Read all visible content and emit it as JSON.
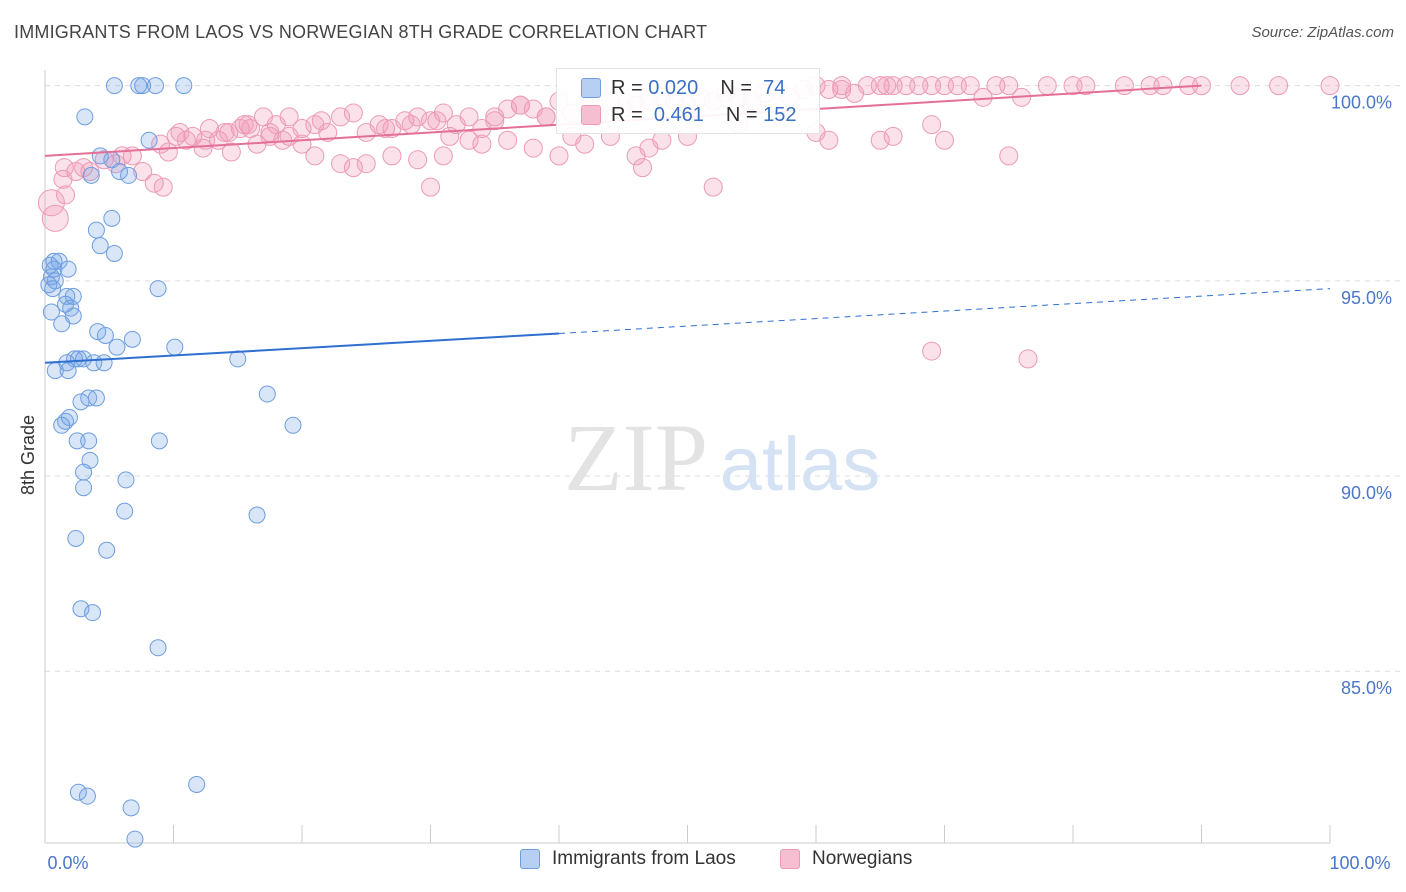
{
  "title": "IMMIGRANTS FROM LAOS VS NORWEGIAN 8TH GRADE CORRELATION CHART",
  "source": "Source: ZipAtlas.com",
  "watermark": {
    "zip": "ZIP",
    "atlas": "atlas"
  },
  "colors": {
    "laos_fill": "rgba(120,165,230,0.28)",
    "laos_stroke": "#6d9de0",
    "laos_line": "#2f6fd0",
    "nor_fill": "rgba(240,150,180,0.28)",
    "nor_stroke": "#ec9ab8",
    "nor_line": "#e46f98",
    "tick_label": "#4a77c9",
    "grid": "#dcdcdc"
  },
  "stats": {
    "laos": {
      "r_label": "R =",
      "r": "0.020",
      "n_label": "N =",
      "n": "74"
    },
    "nor": {
      "r_label": "R =",
      "r": "0.461",
      "n_label": "N =",
      "n": "152"
    }
  },
  "legend": {
    "laos": "Immigrants from Laos",
    "nor": "Norwegians"
  },
  "chart_data": {
    "type": "scatter",
    "title": "IMMIGRANTS FROM LAOS VS NORWEGIAN 8TH GRADE CORRELATION CHART",
    "xlabel": "",
    "ylabel": "8th Grade",
    "xlim": [
      0,
      100
    ],
    "ylim": [
      80.6,
      100.4
    ],
    "x_tick_labels": [
      "0.0%",
      "100.0%"
    ],
    "y_ticks": [
      {
        "value": 100,
        "label": "100.0%"
      },
      {
        "value": 95,
        "label": "95.0%"
      },
      {
        "value": 90,
        "label": "90.0%"
      },
      {
        "value": 85,
        "label": "85.0%"
      }
    ],
    "grid": true,
    "legend_position": "bottom",
    "series": [
      {
        "name": "Immigrants from Laos",
        "trend": {
          "x": [
            0,
            40
          ],
          "y": [
            92.9,
            93.65
          ],
          "dashed_to": [
            100,
            94.8
          ]
        },
        "points": [
          [
            5.4,
            100
          ],
          [
            7.3,
            100
          ],
          [
            7.6,
            100
          ],
          [
            8.6,
            100
          ],
          [
            10.8,
            100
          ],
          [
            3.1,
            99.2
          ],
          [
            8.1,
            98.6
          ],
          [
            4.3,
            98.2
          ],
          [
            5.2,
            98.1
          ],
          [
            5.8,
            97.8
          ],
          [
            3.6,
            97.7
          ],
          [
            6.5,
            97.7
          ],
          [
            5.2,
            96.6
          ],
          [
            4.0,
            96.3
          ],
          [
            4.3,
            95.9
          ],
          [
            5.4,
            95.7
          ],
          [
            0.7,
            95.5
          ],
          [
            1.1,
            95.5
          ],
          [
            0.4,
            95.4
          ],
          [
            0.7,
            95.3
          ],
          [
            1.8,
            95.3
          ],
          [
            0.5,
            95.1
          ],
          [
            0.8,
            95.0
          ],
          [
            0.3,
            94.9
          ],
          [
            8.8,
            94.8
          ],
          [
            1.7,
            94.6
          ],
          [
            2.2,
            94.6
          ],
          [
            1.6,
            94.4
          ],
          [
            2.0,
            94.3
          ],
          [
            0.5,
            94.2
          ],
          [
            2.2,
            94.1
          ],
          [
            1.3,
            93.9
          ],
          [
            4.1,
            93.7
          ],
          [
            4.7,
            93.6
          ],
          [
            6.8,
            93.5
          ],
          [
            5.6,
            93.3
          ],
          [
            10.1,
            93.3
          ],
          [
            15.0,
            93.0
          ],
          [
            2.3,
            93.0
          ],
          [
            2.6,
            93.0
          ],
          [
            3.0,
            93.0
          ],
          [
            3.8,
            92.9
          ],
          [
            4.6,
            92.9
          ],
          [
            1.7,
            92.9
          ],
          [
            0.8,
            92.7
          ],
          [
            1.8,
            92.7
          ],
          [
            17.3,
            92.1
          ],
          [
            3.4,
            92.0
          ],
          [
            4.0,
            92.0
          ],
          [
            2.8,
            91.9
          ],
          [
            1.9,
            91.5
          ],
          [
            1.6,
            91.4
          ],
          [
            1.3,
            91.3
          ],
          [
            19.3,
            91.3
          ],
          [
            2.5,
            90.9
          ],
          [
            3.4,
            90.9
          ],
          [
            8.9,
            90.9
          ],
          [
            3.5,
            90.4
          ],
          [
            3.0,
            90.1
          ],
          [
            6.3,
            89.9
          ],
          [
            3.0,
            89.7
          ],
          [
            6.2,
            89.1
          ],
          [
            16.5,
            89.0
          ],
          [
            2.4,
            88.4
          ],
          [
            4.8,
            88.1
          ],
          [
            2.8,
            86.6
          ],
          [
            3.7,
            86.5
          ],
          [
            8.8,
            85.6
          ],
          [
            11.8,
            82.1
          ],
          [
            2.6,
            81.9
          ],
          [
            3.3,
            81.8
          ],
          [
            6.7,
            81.5
          ],
          [
            7.0,
            80.7
          ],
          [
            0.6,
            94.8
          ]
        ]
      },
      {
        "name": "Norwegians",
        "trend": {
          "x": [
            0,
            90
          ],
          "y": [
            98.2,
            100.0
          ]
        },
        "points": [
          [
            0.8,
            96.6
          ],
          [
            1.6,
            97.2
          ],
          [
            1.4,
            97.6
          ],
          [
            9.2,
            97.4
          ],
          [
            2.4,
            97.8
          ],
          [
            3.5,
            97.8
          ],
          [
            7.6,
            97.8
          ],
          [
            5.5,
            98.0
          ],
          [
            4.6,
            98.1
          ],
          [
            6.0,
            98.2
          ],
          [
            8.5,
            97.5
          ],
          [
            1.5,
            97.9
          ],
          [
            0.5,
            97.0
          ],
          [
            3.0,
            97.9
          ],
          [
            6.8,
            98.2
          ],
          [
            9.6,
            98.3
          ],
          [
            12.3,
            98.4
          ],
          [
            14.3,
            98.8
          ],
          [
            10.2,
            98.7
          ],
          [
            11.0,
            98.6
          ],
          [
            12.8,
            98.9
          ],
          [
            15.2,
            98.9
          ],
          [
            16.0,
            98.9
          ],
          [
            15.5,
            99.0
          ],
          [
            18.0,
            99.0
          ],
          [
            17.0,
            99.2
          ],
          [
            19.0,
            99.2
          ],
          [
            21.0,
            99.0
          ],
          [
            23.0,
            99.2
          ],
          [
            22.0,
            98.8
          ],
          [
            20.0,
            98.9
          ],
          [
            18.5,
            98.6
          ],
          [
            17.5,
            98.8
          ],
          [
            16.5,
            98.5
          ],
          [
            14.5,
            98.3
          ],
          [
            13.5,
            98.6
          ],
          [
            11.5,
            98.7
          ],
          [
            24.0,
            99.3
          ],
          [
            25.0,
            98.8
          ],
          [
            26.0,
            99.0
          ],
          [
            27.0,
            98.9
          ],
          [
            28.0,
            99.1
          ],
          [
            29.0,
            99.2
          ],
          [
            30.0,
            99.1
          ],
          [
            31.0,
            99.3
          ],
          [
            32.0,
            99.0
          ],
          [
            33.0,
            99.2
          ],
          [
            34.0,
            98.9
          ],
          [
            35.0,
            99.1
          ],
          [
            36.0,
            99.4
          ],
          [
            37.0,
            99.5
          ],
          [
            38.0,
            99.4
          ],
          [
            39.0,
            99.2
          ],
          [
            40.0,
            99.6
          ],
          [
            41.0,
            99.3
          ],
          [
            42.0,
            99.5
          ],
          [
            43.0,
            99.2
          ],
          [
            44.0,
            99.6
          ],
          [
            45.0,
            99.4
          ],
          [
            46.0,
            99.5
          ],
          [
            47.0,
            99.6
          ],
          [
            48.0,
            99.7
          ],
          [
            49.0,
            99.6
          ],
          [
            50.0,
            99.5
          ],
          [
            51.0,
            99.7
          ],
          [
            52.0,
            99.6
          ],
          [
            53.0,
            99.8
          ],
          [
            54.0,
            99.7
          ],
          [
            55.0,
            99.6
          ],
          [
            56.0,
            99.8
          ],
          [
            57.0,
            99.9
          ],
          [
            58.0,
            99.7
          ],
          [
            59.0,
            99.9
          ],
          [
            60.0,
            100
          ],
          [
            61.0,
            99.9
          ],
          [
            62.0,
            100
          ],
          [
            63.0,
            99.8
          ],
          [
            64.0,
            100
          ],
          [
            65.0,
            100
          ],
          [
            66.0,
            100
          ],
          [
            67.0,
            100
          ],
          [
            68.0,
            100
          ],
          [
            69.0,
            100
          ],
          [
            70.0,
            100
          ],
          [
            71.0,
            100
          ],
          [
            72.0,
            100
          ],
          [
            74.0,
            100
          ],
          [
            75.0,
            100
          ],
          [
            76.0,
            99.7
          ],
          [
            78.0,
            100
          ],
          [
            80.0,
            100
          ],
          [
            81.0,
            100
          ],
          [
            84.0,
            100
          ],
          [
            86.0,
            100
          ],
          [
            87.0,
            100
          ],
          [
            89.0,
            100
          ],
          [
            90.0,
            100
          ],
          [
            93.0,
            100
          ],
          [
            96.0,
            100
          ],
          [
            100.0,
            100
          ],
          [
            61.0,
            98.6
          ],
          [
            65.0,
            98.6
          ],
          [
            60.0,
            98.8
          ],
          [
            66.0,
            98.7
          ],
          [
            70.0,
            98.6
          ],
          [
            75.0,
            98.2
          ],
          [
            73.0,
            99.7
          ],
          [
            58.0,
            99.3
          ],
          [
            54.0,
            99.0
          ],
          [
            50.0,
            98.7
          ],
          [
            48.0,
            98.6
          ],
          [
            44.0,
            98.7
          ],
          [
            42.0,
            98.5
          ],
          [
            40.0,
            98.2
          ],
          [
            38.0,
            98.4
          ],
          [
            36.0,
            98.6
          ],
          [
            34.0,
            98.5
          ],
          [
            31.0,
            98.2
          ],
          [
            29.0,
            98.1
          ],
          [
            27.0,
            98.2
          ],
          [
            25.0,
            98.0
          ],
          [
            24.0,
            97.9
          ],
          [
            23.0,
            98.0
          ],
          [
            21.0,
            98.2
          ],
          [
            20.0,
            98.5
          ],
          [
            19.0,
            98.7
          ],
          [
            17.5,
            98.7
          ],
          [
            47.0,
            98.4
          ],
          [
            46.0,
            98.2
          ],
          [
            41.0,
            98.7
          ],
          [
            39.0,
            99.2
          ],
          [
            37.0,
            99.5
          ],
          [
            35.0,
            99.2
          ],
          [
            33.0,
            98.6
          ],
          [
            31.5,
            98.7
          ],
          [
            30.5,
            99.1
          ],
          [
            28.5,
            99.0
          ],
          [
            26.5,
            98.9
          ],
          [
            21.5,
            99.1
          ],
          [
            15.8,
            99.0
          ],
          [
            14.0,
            98.8
          ],
          [
            12.5,
            98.6
          ],
          [
            10.5,
            98.8
          ],
          [
            9.0,
            98.5
          ],
          [
            30.0,
            97.4
          ],
          [
            46.5,
            97.9
          ],
          [
            52.0,
            97.4
          ],
          [
            69.0,
            99.0
          ],
          [
            69.0,
            93.2
          ],
          [
            76.5,
            93.0
          ],
          [
            62.0,
            99.9
          ],
          [
            65.5,
            100
          ]
        ]
      }
    ]
  }
}
